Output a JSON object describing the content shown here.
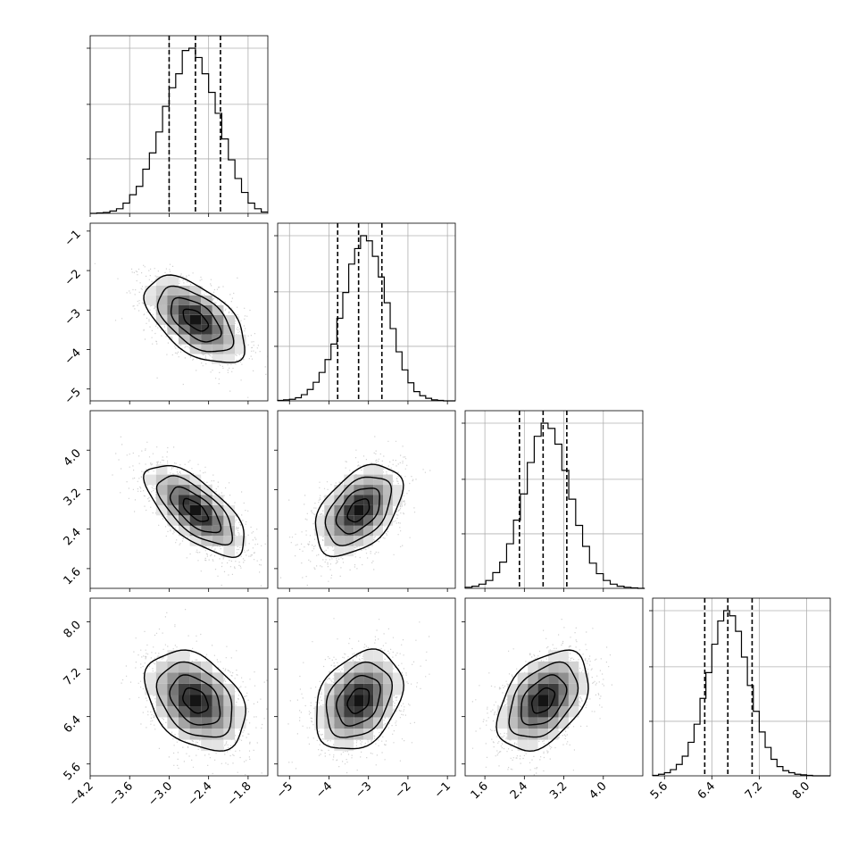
{
  "chart_data": {
    "type": "corner",
    "title": "",
    "grid": true,
    "colors": {
      "hist": "#000000",
      "contour": "#000000",
      "points": "#9a9a9a",
      "density": "#000000",
      "quantile_line": "#000000",
      "grid": "#b0b0b0",
      "background": "#ffffff"
    },
    "parameters": [
      {
        "label": "",
        "mean": -2.6,
        "std": 0.38,
        "range": [
          -4.2,
          -1.5
        ],
        "ticks": [
          -4.2,
          -3.6,
          -3.0,
          -2.4,
          -1.8
        ],
        "tick_labels": [
          "−4.2",
          "−3.6",
          "−3.0",
          "−2.4",
          "−1.8"
        ],
        "quantiles": [
          -3.0,
          -2.6,
          -2.22
        ]
      },
      {
        "label": "",
        "mean": -3.25,
        "std": 0.55,
        "range": [
          -5.3,
          -0.8
        ],
        "ticks": [
          -5,
          -4,
          -3,
          -2,
          -1
        ],
        "tick_labels": [
          "−5",
          "−4",
          "−3",
          "−2",
          "−1"
        ],
        "quantiles": [
          -3.78,
          -3.25,
          -2.66
        ]
      },
      {
        "label": "",
        "mean": 2.78,
        "std": 0.46,
        "range": [
          1.2,
          4.8
        ],
        "ticks": [
          1.6,
          2.4,
          3.2,
          4.0
        ],
        "tick_labels": [
          "1.6",
          "2.4",
          "3.2",
          "4.0"
        ],
        "quantiles": [
          2.3,
          2.78,
          3.26
        ]
      },
      {
        "label": "",
        "mean": 6.67,
        "std": 0.42,
        "range": [
          5.4,
          8.4
        ],
        "ticks": [
          5.6,
          6.4,
          7.2,
          8.0
        ],
        "tick_labels": [
          "5.6",
          "6.4",
          "7.2",
          "8.0"
        ],
        "quantiles": [
          6.28,
          6.67,
          7.08
        ]
      }
    ],
    "histograms": [
      {
        "param": 0,
        "bins": [
          -4.2,
          -4.1,
          -4.0,
          -3.9,
          -3.8,
          -3.7,
          -3.6,
          -3.5,
          -3.4,
          -3.3,
          -3.2,
          -3.1,
          -3.0,
          -2.9,
          -2.8,
          -2.7,
          -2.6,
          -2.5,
          -2.4,
          -2.3,
          -2.2,
          -2.1,
          -2.0,
          -1.9,
          -1.8,
          -1.7,
          -1.6,
          -1.5
        ],
        "counts": [
          0,
          1,
          2,
          5,
          10,
          22,
          40,
          58,
          95,
          130,
          175,
          230,
          270,
          300,
          350,
          355,
          335,
          300,
          260,
          215,
          160,
          115,
          75,
          45,
          22,
          10,
          3
        ]
      },
      {
        "param": 1,
        "bins": [
          -5.3,
          -5.15,
          -5.0,
          -4.85,
          -4.7,
          -4.55,
          -4.4,
          -4.25,
          -4.1,
          -3.95,
          -3.8,
          -3.65,
          -3.5,
          -3.35,
          -3.2,
          -3.05,
          -2.9,
          -2.75,
          -2.6,
          -2.45,
          -2.3,
          -2.15,
          -2.0,
          -1.85,
          -1.7,
          -1.55,
          -1.4,
          -1.25,
          -1.1,
          -0.95,
          -0.8
        ],
        "counts": [
          1,
          2,
          3,
          6,
          12,
          22,
          36,
          55,
          80,
          110,
          160,
          210,
          265,
          295,
          320,
          310,
          280,
          240,
          190,
          140,
          95,
          60,
          35,
          18,
          10,
          5,
          2,
          1,
          0,
          0
        ]
      },
      {
        "param": 2,
        "bins": [
          1.2,
          1.34,
          1.48,
          1.62,
          1.76,
          1.9,
          2.04,
          2.18,
          2.32,
          2.46,
          2.6,
          2.74,
          2.88,
          3.02,
          3.16,
          3.3,
          3.44,
          3.58,
          3.72,
          3.86,
          4.0,
          4.14,
          4.28,
          4.42,
          4.56,
          4.7,
          4.84
        ],
        "counts": [
          2,
          4,
          8,
          15,
          30,
          50,
          85,
          130,
          180,
          240,
          290,
          315,
          305,
          275,
          225,
          170,
          120,
          80,
          48,
          28,
          15,
          8,
          4,
          2,
          1,
          0
        ]
      },
      {
        "param": 3,
        "bins": [
          5.4,
          5.5,
          5.6,
          5.7,
          5.8,
          5.9,
          6.0,
          6.1,
          6.2,
          6.3,
          6.4,
          6.5,
          6.6,
          6.7,
          6.8,
          6.9,
          7.0,
          7.1,
          7.2,
          7.3,
          7.4,
          7.5,
          7.6,
          7.7,
          7.8,
          7.9,
          8.0,
          8.1,
          8.2,
          8.3,
          8.4
        ],
        "counts": [
          1,
          3,
          6,
          12,
          22,
          38,
          65,
          100,
          150,
          200,
          255,
          300,
          320,
          310,
          280,
          230,
          175,
          125,
          85,
          55,
          32,
          18,
          10,
          6,
          3,
          2,
          1,
          0,
          0,
          0
        ]
      }
    ],
    "pairs": [
      {
        "x_param": 0,
        "y_param": 1,
        "correlation": -0.55
      },
      {
        "x_param": 0,
        "y_param": 2,
        "correlation": -0.68
      },
      {
        "x_param": 1,
        "y_param": 2,
        "correlation": 0.45
      },
      {
        "x_param": 0,
        "y_param": 3,
        "correlation": -0.35
      },
      {
        "x_param": 1,
        "y_param": 3,
        "correlation": 0.3
      },
      {
        "x_param": 2,
        "y_param": 3,
        "correlation": 0.42
      }
    ],
    "contour_levels_sigma": [
      0.5,
      1.0,
      1.5,
      2.0
    ]
  }
}
